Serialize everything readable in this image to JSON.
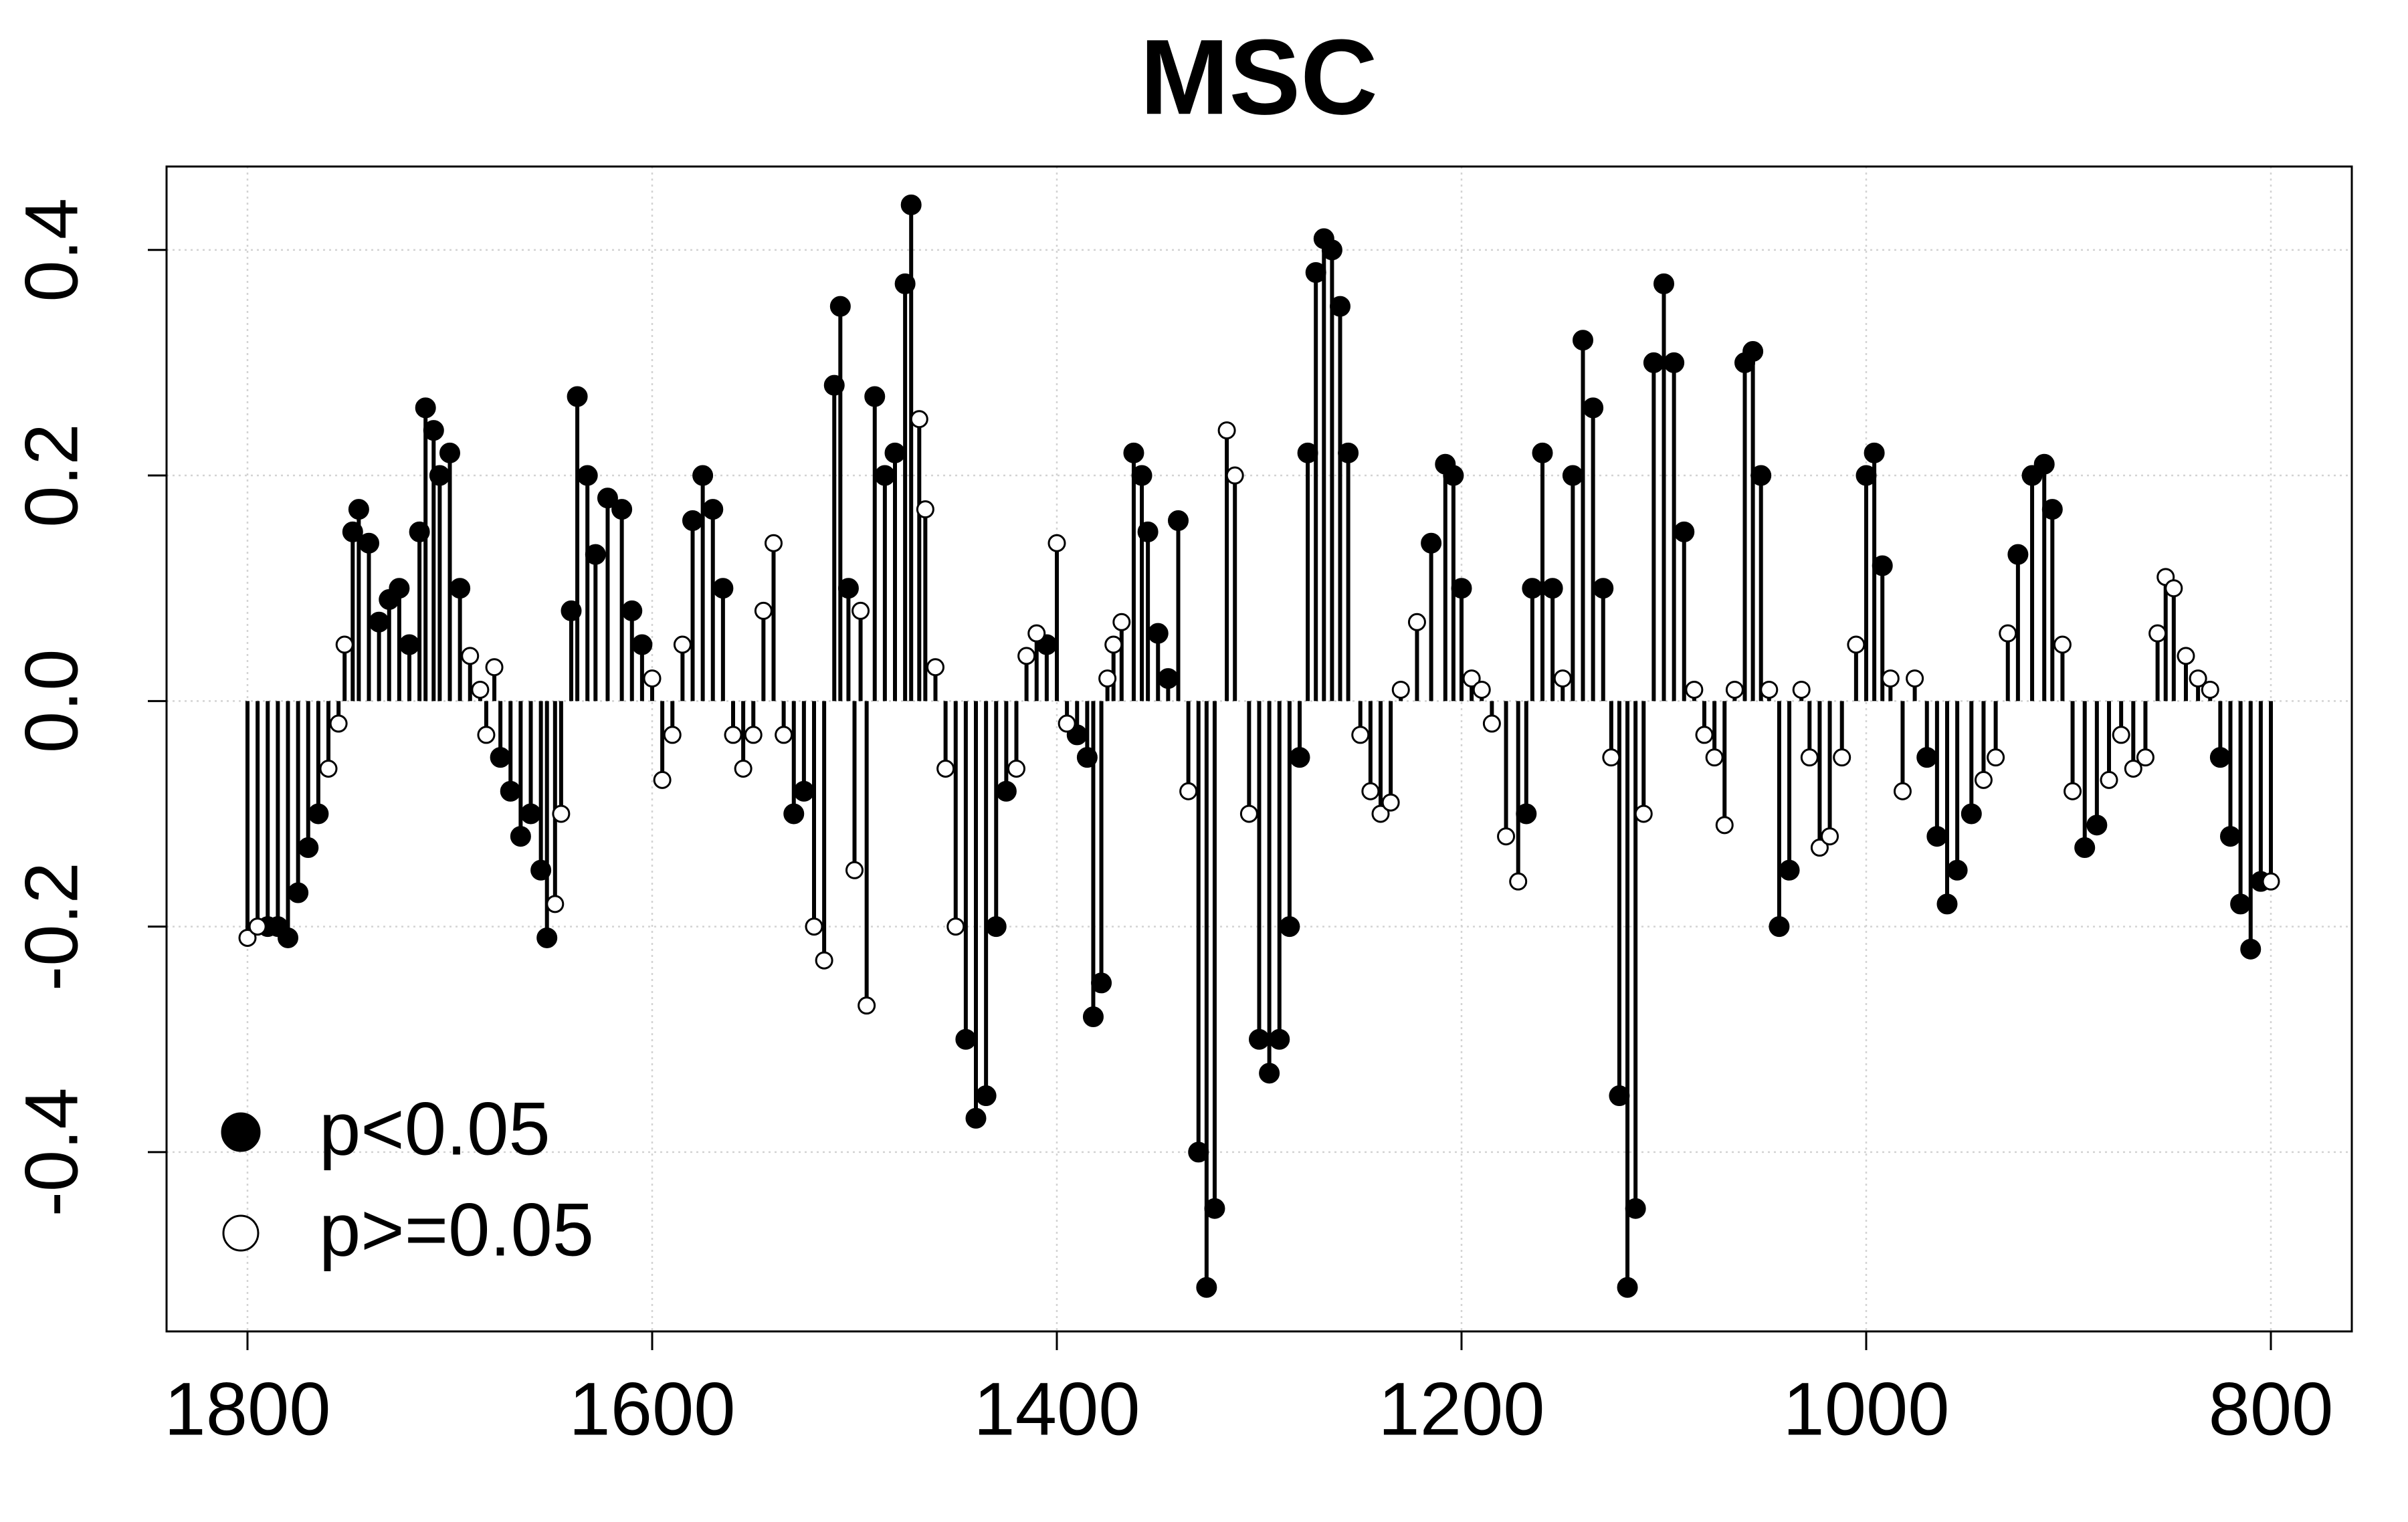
{
  "chart_data": {
    "type": "stem",
    "title": "MSC",
    "xlim": [
      1840,
      760
    ],
    "xticks": [
      1800,
      1600,
      1400,
      1200,
      1000,
      800
    ],
    "ylim": [
      -0.559,
      0.474
    ],
    "yticks": [
      -0.4,
      -0.2,
      {
        "value": 0,
        "label": "0.0"
      },
      0.2,
      0.4
    ],
    "grid": true,
    "legend": "bottom-left",
    "series": [
      {
        "name": "p<0.05",
        "marker": "filled",
        "color": "#000000",
        "x": [
          1790,
          1785,
          1780,
          1775,
          1770,
          1765,
          1748,
          1745,
          1740,
          1735,
          1730,
          1725,
          1720,
          1715,
          1712,
          1708,
          1705,
          1700,
          1695,
          1675,
          1670,
          1665,
          1660,
          1655,
          1652,
          1640,
          1637,
          1632,
          1628,
          1622,
          1615,
          1610,
          1605,
          1580,
          1575,
          1570,
          1565,
          1530,
          1525,
          1510,
          1507,
          1503,
          1490,
          1485,
          1480,
          1475,
          1472,
          1445,
          1440,
          1435,
          1430,
          1425,
          1405,
          1390,
          1385,
          1382,
          1378,
          1362,
          1358,
          1355,
          1350,
          1345,
          1340,
          1330,
          1326,
          1322,
          1300,
          1295,
          1290,
          1285,
          1280,
          1276,
          1272,
          1268,
          1264,
          1260,
          1256,
          1215,
          1208,
          1204,
          1200,
          1168,
          1165,
          1160,
          1155,
          1145,
          1140,
          1135,
          1130,
          1122,
          1118,
          1114,
          1105,
          1100,
          1095,
          1090,
          1060,
          1056,
          1052,
          1043,
          1038,
          1000,
          996,
          992,
          970,
          965,
          960,
          955,
          948,
          925,
          918,
          912,
          908,
          892,
          886,
          825,
          820,
          815,
          810,
          805
        ],
        "values": [
          -0.2,
          -0.2,
          -0.21,
          -0.17,
          -0.13,
          -0.1,
          0.15,
          0.17,
          0.14,
          0.07,
          0.09,
          0.1,
          0.05,
          0.15,
          0.26,
          0.24,
          0.2,
          0.22,
          0.1,
          -0.05,
          -0.08,
          -0.12,
          -0.1,
          -0.15,
          -0.21,
          0.08,
          0.27,
          0.2,
          0.13,
          0.18,
          0.17,
          0.08,
          0.05,
          0.16,
          0.2,
          0.17,
          0.1,
          -0.1,
          -0.08,
          0.28,
          0.35,
          0.1,
          0.27,
          0.2,
          0.22,
          0.37,
          0.44,
          -0.3,
          -0.37,
          -0.35,
          -0.2,
          -0.08,
          0.05,
          -0.03,
          -0.05,
          -0.28,
          -0.25,
          0.22,
          0.2,
          0.15,
          0.06,
          0.02,
          0.16,
          -0.4,
          -0.52,
          -0.45,
          -0.3,
          -0.33,
          -0.3,
          -0.2,
          -0.05,
          0.22,
          0.38,
          0.41,
          0.4,
          0.35,
          0.22,
          0.14,
          0.21,
          0.2,
          0.1,
          -0.1,
          0.1,
          0.22,
          0.1,
          0.2,
          0.32,
          0.26,
          0.1,
          -0.35,
          -0.52,
          -0.45,
          0.3,
          0.37,
          0.3,
          0.15,
          0.3,
          0.31,
          0.2,
          -0.2,
          -0.15,
          0.2,
          0.22,
          0.12,
          -0.05,
          -0.12,
          -0.18,
          -0.15,
          -0.1,
          0.13,
          0.2,
          0.21,
          0.17,
          -0.13,
          -0.11,
          -0.05,
          -0.12,
          -0.18,
          -0.22,
          -0.16
        ]
      },
      {
        "name": "p>=0.05",
        "marker": "open",
        "color": "#000000",
        "x": [
          1800,
          1795,
          1760,
          1755,
          1752,
          1690,
          1685,
          1682,
          1678,
          1648,
          1645,
          1600,
          1595,
          1590,
          1585,
          1560,
          1555,
          1550,
          1545,
          1540,
          1535,
          1520,
          1515,
          1500,
          1497,
          1494,
          1468,
          1465,
          1460,
          1455,
          1450,
          1420,
          1415,
          1410,
          1400,
          1395,
          1375,
          1372,
          1368,
          1335,
          1316,
          1312,
          1305,
          1250,
          1245,
          1240,
          1235,
          1230,
          1222,
          1195,
          1190,
          1185,
          1178,
          1172,
          1150,
          1126,
          1110,
          1085,
          1080,
          1075,
          1070,
          1065,
          1048,
          1032,
          1028,
          1023,
          1018,
          1012,
          1005,
          988,
          982,
          976,
          942,
          936,
          930,
          903,
          898,
          880,
          874,
          868,
          862,
          856,
          852,
          848,
          842,
          836,
          830,
          800
        ],
        "values": [
          -0.21,
          -0.2,
          -0.06,
          -0.02,
          0.05,
          0.04,
          0.01,
          -0.03,
          0.03,
          -0.18,
          -0.1,
          0.02,
          -0.07,
          -0.03,
          0.05,
          -0.03,
          -0.06,
          -0.03,
          0.08,
          0.14,
          -0.03,
          -0.2,
          -0.23,
          -0.15,
          0.08,
          -0.27,
          0.25,
          0.17,
          0.03,
          -0.06,
          -0.2,
          -0.06,
          0.04,
          0.06,
          0.14,
          -0.02,
          0.02,
          0.05,
          0.07,
          -0.08,
          0.24,
          0.2,
          -0.1,
          -0.03,
          -0.08,
          -0.1,
          -0.09,
          0.01,
          0.07,
          0.02,
          0.01,
          -0.02,
          -0.12,
          -0.16,
          0.02,
          -0.05,
          -0.1,
          0.01,
          -0.03,
          -0.05,
          -0.11,
          0.01,
          0.01,
          0.01,
          -0.05,
          -0.13,
          -0.12,
          -0.05,
          0.05,
          0.02,
          -0.08,
          0.02,
          -0.07,
          -0.05,
          0.06,
          0.05,
          -0.08,
          -0.07,
          -0.03,
          -0.06,
          -0.05,
          0.06,
          0.11,
          0.1,
          0.04,
          0.02,
          0.01,
          -0.16
        ]
      }
    ]
  }
}
